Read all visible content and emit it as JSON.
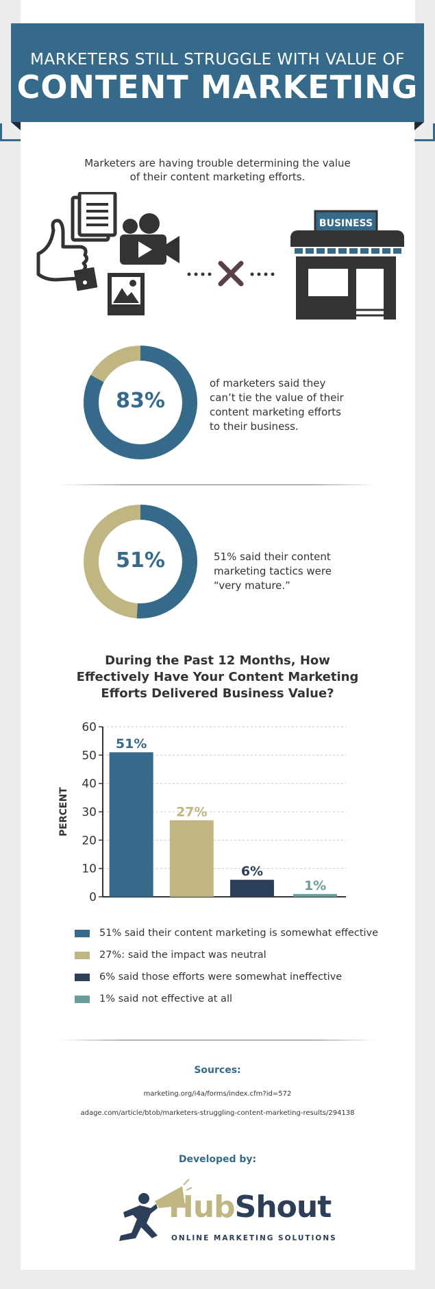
{
  "header": {
    "line1": "MARKETERS STILL STRUGGLE WITH VALUE OF",
    "line2": "CONTENT MARKETING"
  },
  "intro": {
    "line1": "Marketers are having trouble determining the value",
    "line2": "of their content marketing efforts."
  },
  "illustration": {
    "store_sign": "BUSINESS",
    "icons": [
      "thumbs-up-icon",
      "document-icon",
      "video-camera-icon",
      "image-icon",
      "cross-icon",
      "storefront-icon"
    ]
  },
  "stat1": {
    "value": 83,
    "label": "83%",
    "text_lines": [
      "of marketers said they",
      "can’t tie the value of their",
      "content marketing efforts",
      "to their business."
    ]
  },
  "stat2": {
    "value": 51,
    "label": "51%",
    "text_lines": [
      "51% said their content",
      "marketing tactics were",
      "“very mature.”"
    ]
  },
  "colors": {
    "blue": "#356a8a",
    "tan": "#bfb682",
    "navy": "#2c3e58",
    "teal": "#6b9c9c"
  },
  "chart_data": {
    "type": "bar",
    "title_lines": [
      "During the Past 12 Months, How",
      "Effectively Have Your Content Marketing",
      "Efforts Delivered Business Value?"
    ],
    "ylabel": "PERCENT",
    "ylim": [
      0,
      60
    ],
    "yticks": [
      0,
      10,
      20,
      30,
      40,
      50,
      60
    ],
    "grid": true,
    "values": [
      51,
      27,
      6,
      1
    ],
    "value_labels": [
      "51%",
      "27%",
      "6%",
      "1%"
    ],
    "bar_colors": [
      "#356a8a",
      "#bfb682",
      "#2c3e58",
      "#6b9c9c"
    ],
    "legend": [
      "51% said their content marketing is somewhat effective",
      "27%:  said the impact was neutral",
      "6% said those efforts were somewhat ineffective",
      "1% said not effective at all"
    ]
  },
  "sources": {
    "heading": "Sources:",
    "items": [
      "marketing.org/i4a/forms/index.cfm?id=572",
      "adage.com/article/btob/marketers-struggling-content-marketing-results/294138"
    ]
  },
  "developer": {
    "heading": "Developed by:",
    "logo_hub": "Hub",
    "logo_shout": "Shout",
    "tagline": "ONLINE MARKETING SOLUTIONS"
  }
}
